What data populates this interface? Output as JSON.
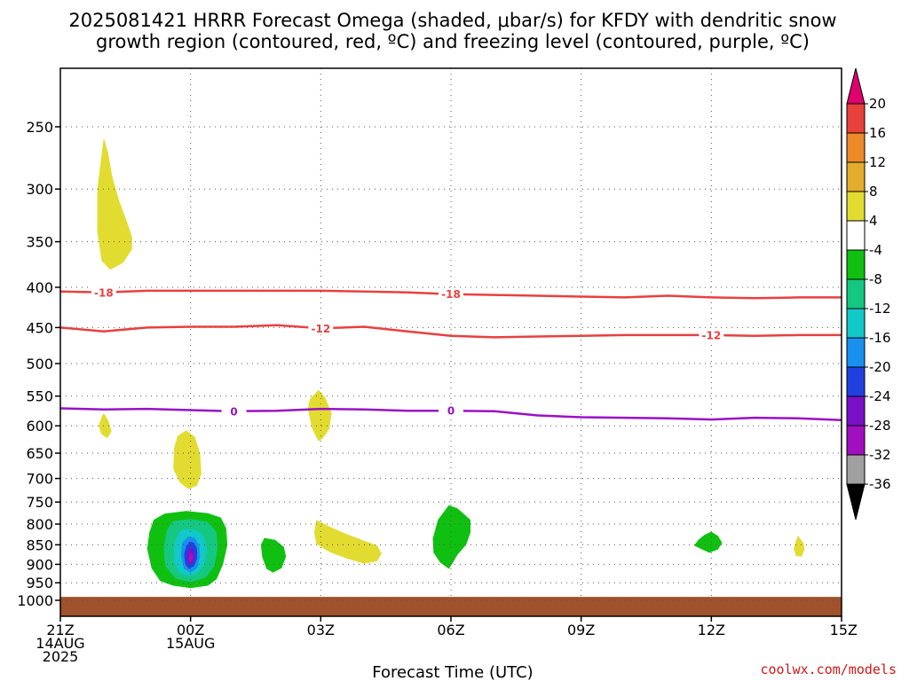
{
  "chart_data": {
    "type": "contour",
    "title_lines": [
      "2025081421 HRRR Forecast Omega (shaded, μbar/s) for KFDY with dendritic snow",
      "growth region (contoured, red, ºC) and freezing level (contoured, purple, ºC)"
    ],
    "xlabel": "Forecast Time (UTC)",
    "credit": "coolwx.com/models",
    "x_ticks": [
      {
        "h": 0,
        "lines": [
          "21Z",
          "14AUG",
          "2025"
        ]
      },
      {
        "h": 3,
        "lines": [
          "00Z",
          "15AUG"
        ]
      },
      {
        "h": 6,
        "lines": [
          "03Z"
        ]
      },
      {
        "h": 9,
        "lines": [
          "06Z"
        ]
      },
      {
        "h": 12,
        "lines": [
          "09Z"
        ]
      },
      {
        "h": 15,
        "lines": [
          "12Z"
        ]
      },
      {
        "h": 18,
        "lines": [
          "15Z"
        ]
      }
    ],
    "xlim": [
      0,
      18
    ],
    "y_ticks": [
      250,
      300,
      350,
      400,
      450,
      500,
      550,
      600,
      650,
      700,
      750,
      800,
      850,
      900,
      950,
      1000
    ],
    "ylim": [
      1030,
      200
    ],
    "y_scale": "log",
    "grid": true,
    "colorbar": {
      "labels": [
        "20",
        "16",
        "12",
        "8",
        "4",
        "-4",
        "-8",
        "-12",
        "-16",
        "-20",
        "-24",
        "-28",
        "-32",
        "-36"
      ],
      "colors": [
        "#e0006e",
        "#e8403a",
        "#ec8a28",
        "#e4ac2c",
        "#e2dc30",
        "#ffffff",
        "#10c010",
        "#14c882",
        "#12c8c8",
        "#1890ee",
        "#2040e0",
        "#7a10c8",
        "#a010c0",
        "#a0a0a0",
        "#000000"
      ]
    },
    "contours": [
      {
        "label": "-18",
        "color": "#e84040",
        "x": [
          0,
          1,
          2,
          3,
          4,
          5,
          6,
          7,
          8,
          9,
          10,
          11,
          12,
          13,
          14,
          15,
          16,
          17,
          18
        ],
        "y": [
          405,
          406,
          404,
          404,
          404,
          404,
          404,
          405,
          406,
          408,
          409,
          410,
          411,
          412,
          410,
          412,
          413,
          412,
          412
        ],
        "label_at": [
          1,
          9
        ]
      },
      {
        "label": "-12",
        "color": "#e84040",
        "x": [
          0,
          1,
          2,
          3,
          4,
          5,
          6,
          7,
          8,
          9,
          10,
          11,
          12,
          13,
          14,
          15,
          16,
          17,
          18
        ],
        "y": [
          450,
          455,
          450,
          449,
          449,
          447,
          451,
          449,
          455,
          461,
          463,
          462,
          461,
          460,
          460,
          460,
          461,
          460,
          460
        ],
        "label_at": [
          6,
          15
        ]
      },
      {
        "label": "0",
        "color": "#9a10c8",
        "x": [
          0,
          1,
          2,
          3,
          4,
          5,
          6,
          7,
          8,
          9,
          10,
          11,
          12,
          13,
          14,
          15,
          16,
          17,
          18
        ],
        "y": [
          570,
          572,
          571,
          573,
          575,
          574,
          571,
          572,
          574,
          574,
          575,
          582,
          585,
          586,
          587,
          589,
          586,
          587,
          590
        ],
        "label_at": [
          4,
          9
        ]
      }
    ],
    "shaded_regions": [
      {
        "value": 4,
        "color": "#e2dc30",
        "x": [
          1.0,
          1.1,
          1.2,
          1.35,
          1.55,
          1.65,
          1.65,
          1.45,
          1.15,
          0.95,
          0.85,
          0.85
        ],
        "y": [
          258,
          270,
          290,
          310,
          332,
          345,
          358,
          372,
          380,
          370,
          340,
          300
        ]
      },
      {
        "value": 4,
        "color": "#e2dc30",
        "x": [
          1.0,
          1.1,
          1.18,
          1.08,
          0.95,
          0.88,
          0.95
        ],
        "y": [
          578,
          590,
          610,
          622,
          615,
          600,
          585
        ]
      },
      {
        "value": 4,
        "color": "#e2dc30",
        "x": [
          2.9,
          3.1,
          3.22,
          3.25,
          3.15,
          2.95,
          2.75,
          2.6,
          2.62,
          2.7
        ],
        "y": [
          608,
          620,
          650,
          690,
          715,
          722,
          708,
          680,
          640,
          618
        ]
      },
      {
        "value": 4,
        "color": "#e2dc30",
        "x": [
          5.95,
          6.1,
          6.25,
          6.2,
          6.05,
          5.95,
          5.8,
          5.7,
          5.75
        ],
        "y": [
          540,
          552,
          578,
          605,
          622,
          628,
          605,
          570,
          555
        ]
      },
      {
        "value": 4,
        "color": "#e2dc30",
        "x": [
          5.9,
          6.2,
          6.6,
          7.0,
          7.3,
          7.4,
          7.3,
          7.0,
          6.6,
          6.2,
          5.9,
          5.85
        ],
        "y": [
          790,
          806,
          824,
          840,
          852,
          872,
          892,
          898,
          885,
          868,
          848,
          820
        ]
      },
      {
        "value": 4,
        "color": "#e2dc30",
        "x": [
          17.0,
          17.12,
          17.15,
          17.08,
          16.95,
          16.9,
          16.95
        ],
        "y": [
          828,
          845,
          862,
          880,
          878,
          860,
          840
        ]
      },
      {
        "value": -4,
        "color": "#10c010",
        "x": [
          2.4,
          2.9,
          3.4,
          3.7,
          3.82,
          3.85,
          3.75,
          3.6,
          3.4,
          3.0,
          2.6,
          2.3,
          2.1,
          2.0,
          2.05,
          2.15
        ],
        "y": [
          776,
          770,
          775,
          785,
          810,
          850,
          900,
          940,
          958,
          965,
          958,
          945,
          910,
          860,
          820,
          790
        ]
      },
      {
        "value": -4,
        "color": "#10c010",
        "x": [
          4.7,
          4.95,
          5.15,
          5.2,
          5.1,
          4.9,
          4.75,
          4.65,
          4.62
        ],
        "y": [
          833,
          838,
          855,
          880,
          910,
          922,
          912,
          880,
          850
        ]
      },
      {
        "value": -4,
        "color": "#10c010",
        "x": [
          8.95,
          9.15,
          9.45,
          9.45,
          9.35,
          9.15,
          9.05,
          8.95,
          8.75,
          8.6,
          8.58,
          8.7
        ],
        "y": [
          757,
          764,
          790,
          820,
          850,
          875,
          895,
          912,
          895,
          870,
          835,
          790
        ]
      },
      {
        "value": -4,
        "color": "#10c010",
        "x": [
          15.0,
          15.15,
          15.25,
          15.15,
          14.95,
          14.6,
          14.7,
          14.85
        ],
        "y": [
          818,
          828,
          845,
          862,
          870,
          852,
          838,
          825
        ]
      },
      {
        "value": -8,
        "color": "#14c882",
        "x": [
          2.6,
          3.0,
          3.4,
          3.6,
          3.62,
          3.55,
          3.35,
          3.0,
          2.65,
          2.42,
          2.38,
          2.45
        ],
        "y": [
          793,
          788,
          795,
          820,
          860,
          905,
          935,
          948,
          938,
          905,
          860,
          815
        ]
      },
      {
        "value": -12,
        "color": "#12c8c8",
        "x": [
          2.8,
          3.1,
          3.3,
          3.38,
          3.32,
          3.15,
          2.95,
          2.75,
          2.62,
          2.62,
          2.7
        ],
        "y": [
          813,
          813,
          828,
          860,
          900,
          925,
          932,
          922,
          895,
          855,
          825
        ]
      },
      {
        "value": -16,
        "color": "#1890ee",
        "x": [
          2.95,
          3.1,
          3.2,
          3.22,
          3.15,
          3.0,
          2.85,
          2.78,
          2.8
        ],
        "y": [
          830,
          833,
          852,
          880,
          910,
          922,
          912,
          880,
          845
        ]
      },
      {
        "value": -20,
        "color": "#2040e0",
        "x": [
          2.98,
          3.08,
          3.15,
          3.15,
          3.08,
          2.96,
          2.88,
          2.85,
          2.9
        ],
        "y": [
          842,
          845,
          860,
          885,
          905,
          912,
          900,
          875,
          853
        ]
      },
      {
        "value": -24,
        "color": "#7a10c8",
        "x": [
          2.98,
          3.06,
          3.1,
          3.06,
          2.98,
          2.92,
          2.92
        ],
        "y": [
          858,
          862,
          878,
          895,
          900,
          888,
          868
        ]
      },
      {
        "value": -28,
        "color": "#a010c0",
        "x": [
          2.99,
          3.04,
          3.06,
          3.03,
          2.98,
          2.95,
          2.96
        ],
        "y": [
          870,
          872,
          882,
          892,
          895,
          888,
          876
        ]
      }
    ],
    "ground": {
      "color": "#a0522d",
      "top": 990,
      "bottom": 1030
    }
  }
}
